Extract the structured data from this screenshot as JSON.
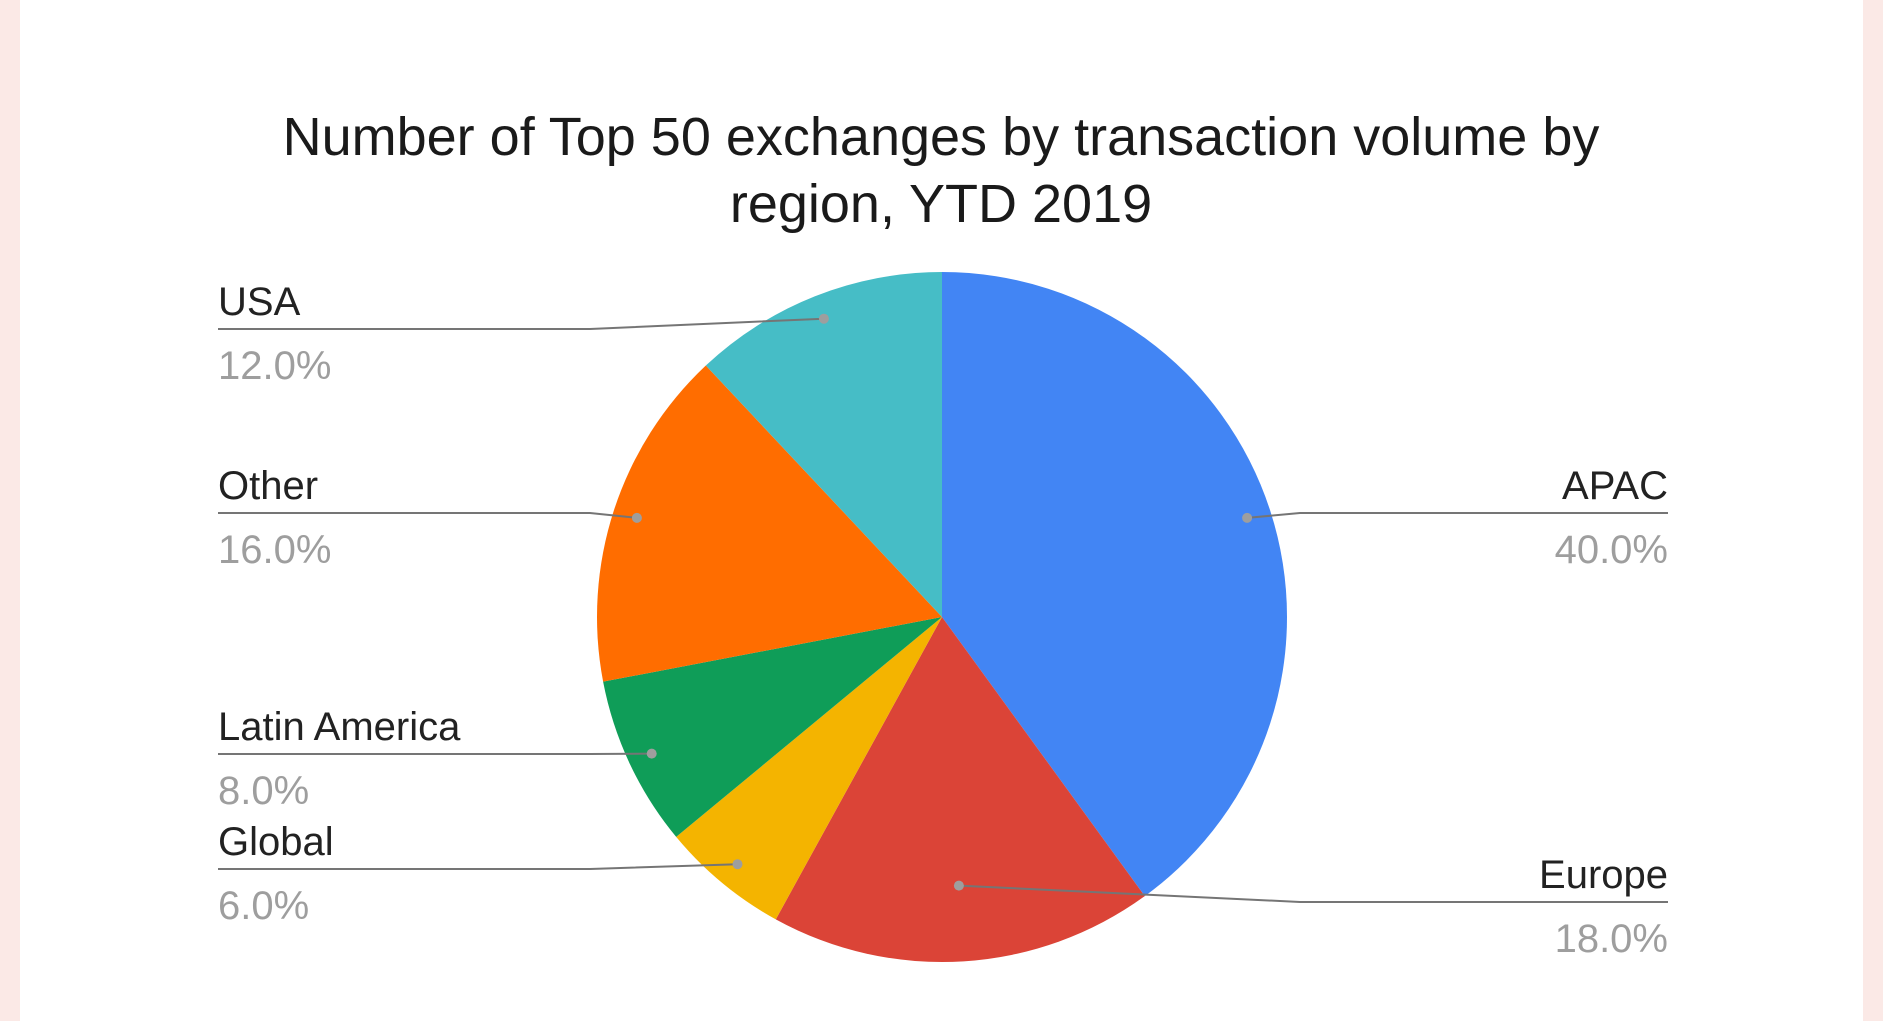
{
  "chart_data": {
    "type": "pie",
    "title_lines": [
      "Number of Top 50 exchanges by transaction volume by",
      "region, YTD 2019"
    ],
    "start_angle_deg": 0,
    "direction": "clockwise",
    "slices": [
      {
        "label": "APAC",
        "value": 40.0,
        "display": "40.0%",
        "color": "#4285f4"
      },
      {
        "label": "Europe",
        "value": 18.0,
        "display": "18.0%",
        "color": "#db4437"
      },
      {
        "label": "Global",
        "value": 6.0,
        "display": "6.0%",
        "color": "#f4b400"
      },
      {
        "label": "Latin America",
        "value": 8.0,
        "display": "8.0%",
        "color": "#0f9d58"
      },
      {
        "label": "Other",
        "value": 16.0,
        "display": "16.0%",
        "color": "#ff6d00"
      },
      {
        "label": "USA",
        "value": 12.0,
        "display": "12.0%",
        "color": "#46bdc6"
      }
    ]
  }
}
